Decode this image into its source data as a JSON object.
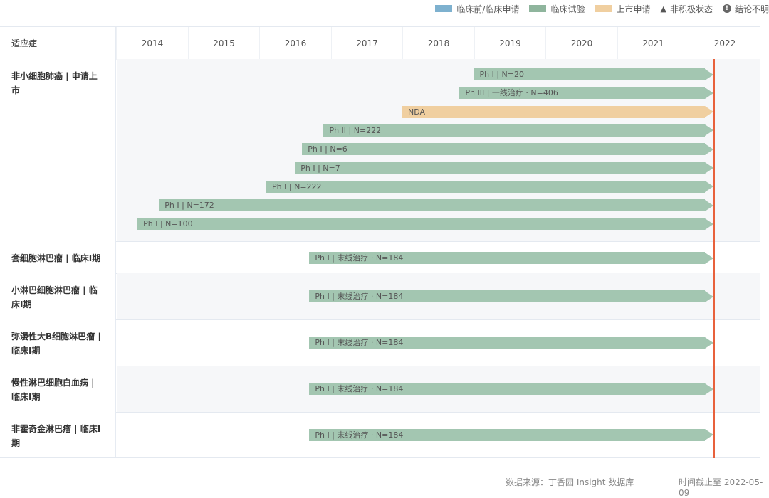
{
  "legend": {
    "items": [
      {
        "label": "临床前/临床申请",
        "color": "#7eb1cf"
      },
      {
        "label": "临床试验",
        "color": "#8fb59d"
      },
      {
        "label": "上市申请",
        "color": "#f0cfa0"
      },
      {
        "label": "非积极状态",
        "icon": "triangle-icon"
      },
      {
        "label": "结论不明",
        "icon": "exclamation-icon"
      }
    ]
  },
  "header": {
    "indication_label": "适应症",
    "years": [
      "2014",
      "2015",
      "2016",
      "2017",
      "2018",
      "2019",
      "2020",
      "2021",
      "2022"
    ]
  },
  "rows": [
    {
      "indication": "非小细胞肺癌 | 申请上市",
      "bars": [
        {
          "label": "Ph I | N=20",
          "start": "2019",
          "type": "trial"
        },
        {
          "label": "Ph III | 一线治疗 · N=406",
          "start": "2018.8",
          "type": "trial"
        },
        {
          "label": "NDA",
          "start": "2018",
          "type": "nda"
        },
        {
          "label": "Ph II | N=222",
          "start": "2016.9",
          "type": "trial"
        },
        {
          "label": "Ph I | N=6",
          "start": "2016.6",
          "type": "trial"
        },
        {
          "label": "Ph I | N=7",
          "start": "2016.5",
          "type": "trial"
        },
        {
          "label": "Ph I | N=222",
          "start": "2016.1",
          "type": "trial"
        },
        {
          "label": "Ph I | N=172",
          "start": "2014.6",
          "type": "trial"
        },
        {
          "label": "Ph I | N=100",
          "start": "2014.3",
          "type": "trial"
        }
      ]
    },
    {
      "indication": "套细胞淋巴瘤 | 临床I期",
      "bars": [
        {
          "label": "Ph I | 末线治疗 · N=184",
          "start": "2016.7",
          "type": "trial"
        }
      ]
    },
    {
      "indication": "小淋巴细胞淋巴瘤 | 临床I期",
      "bars": [
        {
          "label": "Ph I | 末线治疗 · N=184",
          "start": "2016.7",
          "type": "trial"
        }
      ]
    },
    {
      "indication": "弥漫性大B细胞淋巴瘤 | 临床I期",
      "bars": [
        {
          "label": "Ph I | 末线治疗 · N=184",
          "start": "2016.7",
          "type": "trial"
        }
      ]
    },
    {
      "indication": "慢性淋巴细胞白血病 | 临床I期",
      "bars": [
        {
          "label": "Ph I | 末线治疗 · N=184",
          "start": "2016.7",
          "type": "trial"
        }
      ]
    },
    {
      "indication": "非霍奇金淋巴瘤 | 临床I期",
      "bars": [
        {
          "label": "Ph I | 末线治疗 · N=184",
          "start": "2016.7",
          "type": "trial"
        }
      ]
    }
  ],
  "footer": {
    "source": "数据来源：丁香园 Insight 数据库",
    "cutoff": "时间截止至 2022-05-09"
  },
  "colors": {
    "trial": "#a3c6b1",
    "nda": "#f0cfa0",
    "today_line": "#e8613c"
  }
}
